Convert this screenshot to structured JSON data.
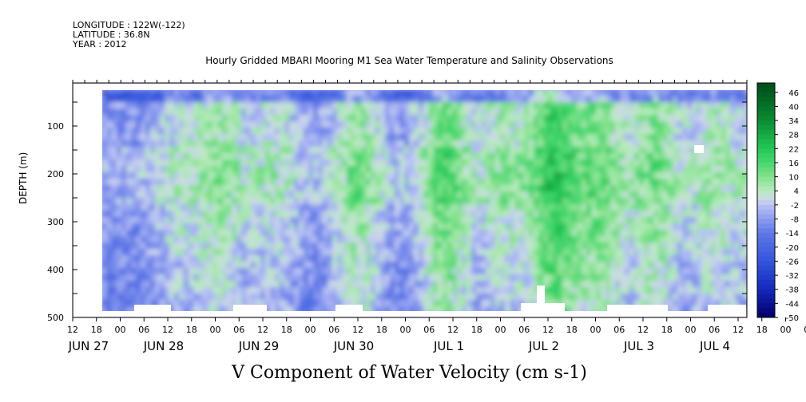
{
  "meta": {
    "longitude": "LONGITUDE : 122W(-122)",
    "latitude": "LATITUDE : 36.8N",
    "year": "YEAR : 2012"
  },
  "chart_data": {
    "type": "heatmap",
    "title": "Hourly Gridded MBARI Mooring M1 Sea Water Temperature and Salinity Observations",
    "xlabel_hours": [
      "12",
      "18",
      "00",
      "06",
      "12",
      "18",
      "00",
      "06",
      "12",
      "18",
      "00",
      "06",
      "12",
      "18",
      "00",
      "06",
      "12",
      "18",
      "00",
      "06",
      "12",
      "18",
      "00",
      "06",
      "12",
      "18",
      "00",
      "06",
      "12",
      "18",
      "00",
      "06",
      "12"
    ],
    "xlabel_days": [
      "JUN 27",
      "JUN 28",
      "JUN 29",
      "JUN 30",
      "JUL  1",
      "JUL  2",
      "JUL  3",
      "JUL  4"
    ],
    "ylabel": "DEPTH (m)",
    "y_ticks": [
      100,
      200,
      300,
      400,
      500
    ],
    "ylim": [
      500,
      20
    ],
    "colorbar_labels": [
      46,
      40,
      34,
      28,
      22,
      16,
      10,
      4,
      -2,
      -8,
      -14,
      -20,
      -26,
      -32,
      -38,
      -44,
      -50
    ],
    "colorbar_range": [
      -50,
      50
    ],
    "variable": "V Component of Water Velocity (cm s-1)",
    "colors": {
      "strong_negative": "#000066",
      "negative": "#3355dd",
      "weak_negative": "#a9b4f0",
      "weak_positive": "#a8eab0",
      "positive": "#22cc55",
      "strong_positive": "#004d1a"
    }
  }
}
